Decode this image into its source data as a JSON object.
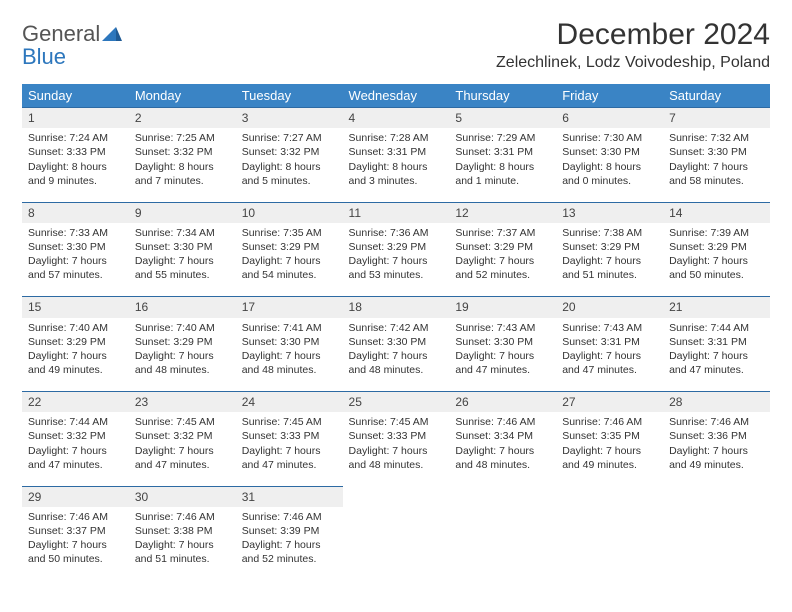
{
  "logo": {
    "line1": "General",
    "line2": "Blue"
  },
  "title": "December 2024",
  "location": "Zelechlinek, Lodz Voivodeship, Poland",
  "colors": {
    "header_bg": "#3a84c5",
    "header_text": "#ffffff",
    "daynum_bg": "#efefef",
    "row_divider": "#2d6aa3",
    "text": "#333333",
    "logo_gray": "#555555",
    "logo_blue": "#2d77bd"
  },
  "day_headers": [
    "Sunday",
    "Monday",
    "Tuesday",
    "Wednesday",
    "Thursday",
    "Friday",
    "Saturday"
  ],
  "weeks": [
    [
      {
        "num": "1",
        "sunrise": "Sunrise: 7:24 AM",
        "sunset": "Sunset: 3:33 PM",
        "daylight": "Daylight: 8 hours and 9 minutes."
      },
      {
        "num": "2",
        "sunrise": "Sunrise: 7:25 AM",
        "sunset": "Sunset: 3:32 PM",
        "daylight": "Daylight: 8 hours and 7 minutes."
      },
      {
        "num": "3",
        "sunrise": "Sunrise: 7:27 AM",
        "sunset": "Sunset: 3:32 PM",
        "daylight": "Daylight: 8 hours and 5 minutes."
      },
      {
        "num": "4",
        "sunrise": "Sunrise: 7:28 AM",
        "sunset": "Sunset: 3:31 PM",
        "daylight": "Daylight: 8 hours and 3 minutes."
      },
      {
        "num": "5",
        "sunrise": "Sunrise: 7:29 AM",
        "sunset": "Sunset: 3:31 PM",
        "daylight": "Daylight: 8 hours and 1 minute."
      },
      {
        "num": "6",
        "sunrise": "Sunrise: 7:30 AM",
        "sunset": "Sunset: 3:30 PM",
        "daylight": "Daylight: 8 hours and 0 minutes."
      },
      {
        "num": "7",
        "sunrise": "Sunrise: 7:32 AM",
        "sunset": "Sunset: 3:30 PM",
        "daylight": "Daylight: 7 hours and 58 minutes."
      }
    ],
    [
      {
        "num": "8",
        "sunrise": "Sunrise: 7:33 AM",
        "sunset": "Sunset: 3:30 PM",
        "daylight": "Daylight: 7 hours and 57 minutes."
      },
      {
        "num": "9",
        "sunrise": "Sunrise: 7:34 AM",
        "sunset": "Sunset: 3:30 PM",
        "daylight": "Daylight: 7 hours and 55 minutes."
      },
      {
        "num": "10",
        "sunrise": "Sunrise: 7:35 AM",
        "sunset": "Sunset: 3:29 PM",
        "daylight": "Daylight: 7 hours and 54 minutes."
      },
      {
        "num": "11",
        "sunrise": "Sunrise: 7:36 AM",
        "sunset": "Sunset: 3:29 PM",
        "daylight": "Daylight: 7 hours and 53 minutes."
      },
      {
        "num": "12",
        "sunrise": "Sunrise: 7:37 AM",
        "sunset": "Sunset: 3:29 PM",
        "daylight": "Daylight: 7 hours and 52 minutes."
      },
      {
        "num": "13",
        "sunrise": "Sunrise: 7:38 AM",
        "sunset": "Sunset: 3:29 PM",
        "daylight": "Daylight: 7 hours and 51 minutes."
      },
      {
        "num": "14",
        "sunrise": "Sunrise: 7:39 AM",
        "sunset": "Sunset: 3:29 PM",
        "daylight": "Daylight: 7 hours and 50 minutes."
      }
    ],
    [
      {
        "num": "15",
        "sunrise": "Sunrise: 7:40 AM",
        "sunset": "Sunset: 3:29 PM",
        "daylight": "Daylight: 7 hours and 49 minutes."
      },
      {
        "num": "16",
        "sunrise": "Sunrise: 7:40 AM",
        "sunset": "Sunset: 3:29 PM",
        "daylight": "Daylight: 7 hours and 48 minutes."
      },
      {
        "num": "17",
        "sunrise": "Sunrise: 7:41 AM",
        "sunset": "Sunset: 3:30 PM",
        "daylight": "Daylight: 7 hours and 48 minutes."
      },
      {
        "num": "18",
        "sunrise": "Sunrise: 7:42 AM",
        "sunset": "Sunset: 3:30 PM",
        "daylight": "Daylight: 7 hours and 48 minutes."
      },
      {
        "num": "19",
        "sunrise": "Sunrise: 7:43 AM",
        "sunset": "Sunset: 3:30 PM",
        "daylight": "Daylight: 7 hours and 47 minutes."
      },
      {
        "num": "20",
        "sunrise": "Sunrise: 7:43 AM",
        "sunset": "Sunset: 3:31 PM",
        "daylight": "Daylight: 7 hours and 47 minutes."
      },
      {
        "num": "21",
        "sunrise": "Sunrise: 7:44 AM",
        "sunset": "Sunset: 3:31 PM",
        "daylight": "Daylight: 7 hours and 47 minutes."
      }
    ],
    [
      {
        "num": "22",
        "sunrise": "Sunrise: 7:44 AM",
        "sunset": "Sunset: 3:32 PM",
        "daylight": "Daylight: 7 hours and 47 minutes."
      },
      {
        "num": "23",
        "sunrise": "Sunrise: 7:45 AM",
        "sunset": "Sunset: 3:32 PM",
        "daylight": "Daylight: 7 hours and 47 minutes."
      },
      {
        "num": "24",
        "sunrise": "Sunrise: 7:45 AM",
        "sunset": "Sunset: 3:33 PM",
        "daylight": "Daylight: 7 hours and 47 minutes."
      },
      {
        "num": "25",
        "sunrise": "Sunrise: 7:45 AM",
        "sunset": "Sunset: 3:33 PM",
        "daylight": "Daylight: 7 hours and 48 minutes."
      },
      {
        "num": "26",
        "sunrise": "Sunrise: 7:46 AM",
        "sunset": "Sunset: 3:34 PM",
        "daylight": "Daylight: 7 hours and 48 minutes."
      },
      {
        "num": "27",
        "sunrise": "Sunrise: 7:46 AM",
        "sunset": "Sunset: 3:35 PM",
        "daylight": "Daylight: 7 hours and 49 minutes."
      },
      {
        "num": "28",
        "sunrise": "Sunrise: 7:46 AM",
        "sunset": "Sunset: 3:36 PM",
        "daylight": "Daylight: 7 hours and 49 minutes."
      }
    ],
    [
      {
        "num": "29",
        "sunrise": "Sunrise: 7:46 AM",
        "sunset": "Sunset: 3:37 PM",
        "daylight": "Daylight: 7 hours and 50 minutes."
      },
      {
        "num": "30",
        "sunrise": "Sunrise: 7:46 AM",
        "sunset": "Sunset: 3:38 PM",
        "daylight": "Daylight: 7 hours and 51 minutes."
      },
      {
        "num": "31",
        "sunrise": "Sunrise: 7:46 AM",
        "sunset": "Sunset: 3:39 PM",
        "daylight": "Daylight: 7 hours and 52 minutes."
      },
      null,
      null,
      null,
      null
    ]
  ]
}
